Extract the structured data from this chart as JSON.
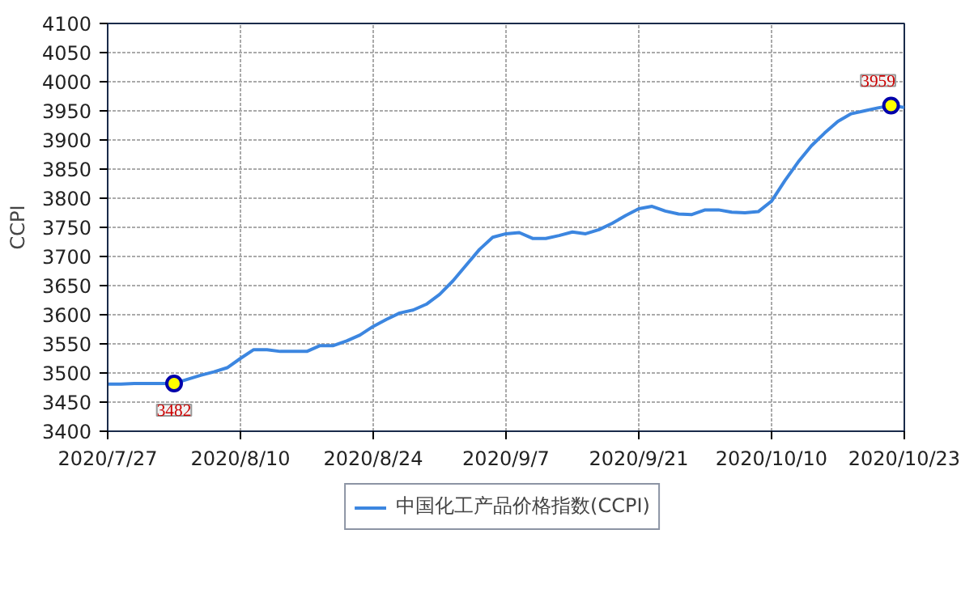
{
  "chart_data": {
    "type": "line",
    "ylabel": "CCPI",
    "categories": [
      "2020/7/27",
      null,
      null,
      null,
      null,
      null,
      null,
      null,
      null,
      null,
      "2020/8/10",
      null,
      null,
      null,
      null,
      null,
      null,
      null,
      null,
      null,
      "2020/8/24",
      null,
      null,
      null,
      null,
      null,
      null,
      null,
      null,
      null,
      "2020/9/7",
      null,
      null,
      null,
      null,
      null,
      null,
      null,
      null,
      null,
      "2020/9/21",
      null,
      null,
      null,
      null,
      null,
      null,
      null,
      null,
      null,
      "2020/10/10",
      null,
      null,
      null,
      null,
      null,
      null,
      null,
      null,
      null,
      "2020/10/23"
    ],
    "series": [
      {
        "name": "中国化工产品价格指数(CCPI)",
        "color": "#3c86e0",
        "values": [
          3481,
          3481,
          3482,
          3482,
          3482,
          3482,
          3489,
          3496,
          3502,
          3509,
          3525,
          3540,
          3540,
          3537,
          3537,
          3537,
          3547,
          3547,
          3555,
          3565,
          3580,
          3592,
          3603,
          3608,
          3618,
          3635,
          3658,
          3685,
          3712,
          3733,
          3739,
          3741,
          3731,
          3731,
          3736,
          3742,
          3739,
          3746,
          3757,
          3770,
          3782,
          3786,
          3778,
          3773,
          3772,
          3780,
          3780,
          3776,
          3775,
          3777,
          3795,
          3830,
          3862,
          3890,
          3912,
          3932,
          3945,
          3950,
          3955,
          3959,
          3956
        ],
        "value_labels": [
          null,
          null,
          null,
          null,
          null,
          "3482",
          null,
          null,
          null,
          null,
          null,
          null,
          null,
          null,
          null,
          null,
          null,
          null,
          null,
          null,
          null,
          null,
          null,
          null,
          null,
          null,
          null,
          null,
          null,
          null,
          null,
          null,
          null,
          null,
          null,
          null,
          null,
          null,
          null,
          null,
          null,
          null,
          null,
          null,
          null,
          null,
          null,
          null,
          null,
          null,
          null,
          null,
          null,
          null,
          null,
          null,
          null,
          null,
          null,
          "3959",
          null
        ]
      }
    ],
    "ylim": [
      3400,
      4100
    ],
    "yticks": [
      3400,
      3450,
      3500,
      3550,
      3600,
      3650,
      3700,
      3750,
      3800,
      3850,
      3900,
      3950,
      4000,
      4050,
      4100
    ],
    "grid": true,
    "legend": "bottom",
    "line_style": "solid"
  }
}
